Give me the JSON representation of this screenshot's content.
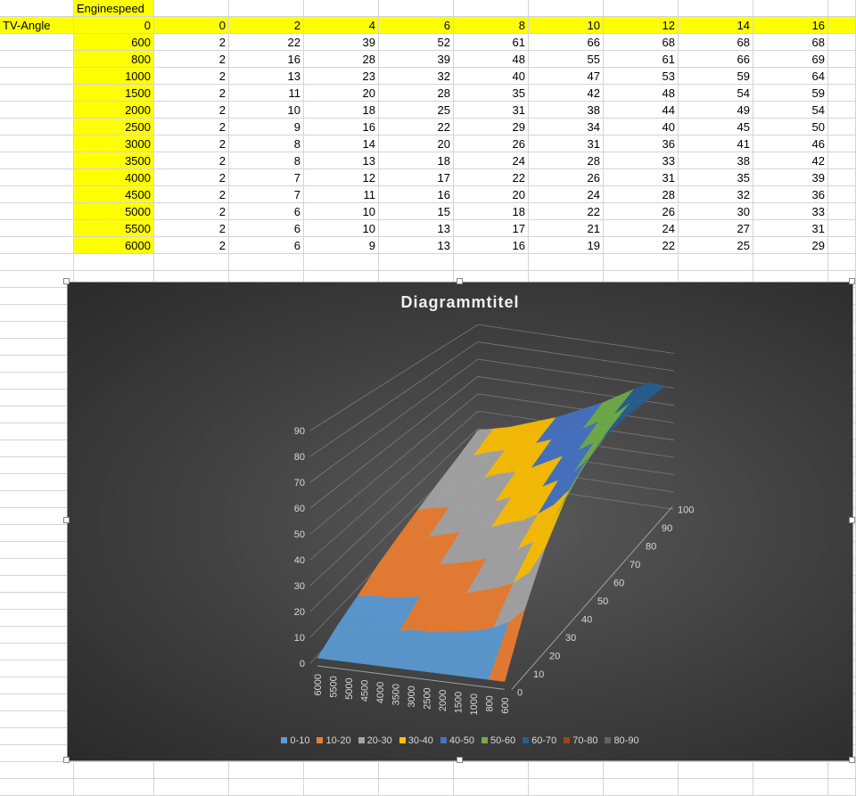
{
  "sheet": {
    "header_label": "Enginespeed",
    "row_axis_label": "TV-Angle",
    "corner_value": "0",
    "columns": [
      "0",
      "2",
      "4",
      "6",
      "8",
      "10",
      "12",
      "14",
      "16"
    ],
    "rows": [
      {
        "rpm": "600",
        "values": [
          2,
          22,
          39,
          52,
          61,
          66,
          68,
          68,
          68
        ]
      },
      {
        "rpm": "800",
        "values": [
          2,
          16,
          28,
          39,
          48,
          55,
          61,
          66,
          69
        ]
      },
      {
        "rpm": "1000",
        "values": [
          2,
          13,
          23,
          32,
          40,
          47,
          53,
          59,
          64
        ]
      },
      {
        "rpm": "1500",
        "values": [
          2,
          11,
          20,
          28,
          35,
          42,
          48,
          54,
          59
        ]
      },
      {
        "rpm": "2000",
        "values": [
          2,
          10,
          18,
          25,
          31,
          38,
          44,
          49,
          54
        ]
      },
      {
        "rpm": "2500",
        "values": [
          2,
          9,
          16,
          22,
          29,
          34,
          40,
          45,
          50
        ]
      },
      {
        "rpm": "3000",
        "values": [
          2,
          8,
          14,
          20,
          26,
          31,
          36,
          41,
          46
        ]
      },
      {
        "rpm": "3500",
        "values": [
          2,
          8,
          13,
          18,
          24,
          28,
          33,
          38,
          42
        ]
      },
      {
        "rpm": "4000",
        "values": [
          2,
          7,
          12,
          17,
          22,
          26,
          31,
          35,
          39
        ]
      },
      {
        "rpm": "4500",
        "values": [
          2,
          7,
          11,
          16,
          20,
          24,
          28,
          32,
          36
        ]
      },
      {
        "rpm": "5000",
        "values": [
          2,
          6,
          10,
          15,
          18,
          22,
          26,
          30,
          33
        ]
      },
      {
        "rpm": "5500",
        "values": [
          2,
          6,
          10,
          13,
          17,
          21,
          24,
          27,
          31
        ]
      },
      {
        "rpm": "6000",
        "values": [
          2,
          6,
          9,
          13,
          16,
          19,
          22,
          25,
          29
        ]
      }
    ],
    "highlight_color": "#ffff00"
  },
  "chart_data": {
    "type": "surface",
    "title": "Diagrammtitel",
    "x_categories": [
      "6000",
      "5500",
      "5000",
      "4500",
      "4000",
      "3500",
      "3000",
      "2500",
      "2000",
      "1500",
      "1000",
      "800",
      "600"
    ],
    "depth_ticks": [
      "0",
      "10",
      "20",
      "30",
      "40",
      "50",
      "60",
      "70",
      "80",
      "90",
      "100"
    ],
    "z_ticks": [
      "0",
      "10",
      "20",
      "30",
      "40",
      "50",
      "60",
      "70",
      "80",
      "90"
    ],
    "z_range": [
      0,
      90
    ],
    "legend_position": "bottom",
    "bands": [
      {
        "label": "0-10",
        "color": "#5b9bd5"
      },
      {
        "label": "10-20",
        "color": "#ed7d31"
      },
      {
        "label": "20-30",
        "color": "#a5a5a5"
      },
      {
        "label": "30-40",
        "color": "#ffc000"
      },
      {
        "label": "40-50",
        "color": "#4472c4"
      },
      {
        "label": "50-60",
        "color": "#70ad47"
      },
      {
        "label": "60-70",
        "color": "#255e91"
      },
      {
        "label": "70-80",
        "color": "#9e480e"
      },
      {
        "label": "80-90",
        "color": "#636363"
      }
    ]
  }
}
